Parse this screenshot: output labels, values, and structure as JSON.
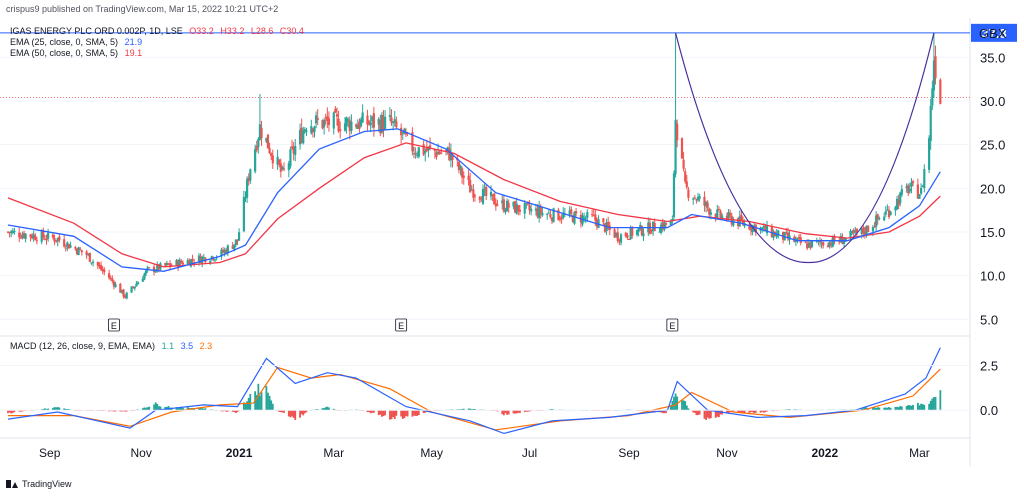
{
  "header": {
    "caption": "crispus9 published on TradingView.com, Mar 15, 2022 10:21 UTC+2"
  },
  "footer": {
    "brand": "TradingView"
  },
  "chart_data": {
    "type": "candlestick",
    "currency": "GBX",
    "legend": {
      "symbol_line": {
        "name": "IGAS ENERGY PLC ORD 0.002P, 1D, LSE",
        "O": "O33.2",
        "H": "H33.2",
        "L": "L28.6",
        "C": "C30.4"
      },
      "ema25": {
        "label": "EMA (25, close, 0, SMA, 5)",
        "value": "21.9",
        "color": "#2962ff"
      },
      "ema50": {
        "label": "EMA (50, close, 0, SMA, 5)",
        "value": "19.1",
        "color": "#f23645"
      },
      "macd": {
        "label": "MACD (12, 26, close, 9, EMA, EMA)",
        "hist": "1.1",
        "macd": "3.5",
        "signal": "2.3"
      }
    },
    "price_axis": {
      "ticks": [
        "35.0",
        "30.0",
        "25.0",
        "20.0",
        "15.0",
        "10.0",
        "5.0"
      ],
      "values": [
        35,
        30,
        25,
        20,
        15,
        10,
        5
      ],
      "range": [
        3.2,
        39.5
      ]
    },
    "macd_axis": {
      "ticks": [
        "2.5",
        "0.0"
      ],
      "values": [
        2.5,
        0
      ],
      "range": [
        -1.5,
        4.1
      ]
    },
    "last_price_marker": {
      "text": "37.8",
      "value": 37.8,
      "color": "#2962ff"
    },
    "reference_line": {
      "value": 30.4,
      "color": "#f23645"
    },
    "time_axis": {
      "labels": [
        {
          "text": "Sep",
          "bold": false
        },
        {
          "text": "Nov",
          "bold": false
        },
        {
          "text": "2021",
          "bold": true
        },
        {
          "text": "Mar",
          "bold": false
        },
        {
          "text": "May",
          "bold": false
        },
        {
          "text": "Jul",
          "bold": false
        },
        {
          "text": "Sep",
          "bold": false
        },
        {
          "text": "Nov",
          "bold": false
        },
        {
          "text": "2022",
          "bold": true
        },
        {
          "text": "Mar",
          "bold": false
        }
      ],
      "range": [
        "2020-08-10",
        "2022-03-25"
      ]
    },
    "earnings_markers": [
      {
        "text": "E",
        "date": "2020-10-15"
      },
      {
        "text": "E",
        "date": "2021-04-12"
      },
      {
        "text": "E",
        "date": "2021-09-28"
      }
    ],
    "ohlc_keypoints": [
      {
        "date": "2020-08-10",
        "close": 15.0
      },
      {
        "date": "2020-09-10",
        "close": 14.2
      },
      {
        "date": "2020-09-28",
        "close": 12.4
      },
      {
        "date": "2020-10-12",
        "close": 9.8
      },
      {
        "date": "2020-10-22",
        "close": 7.6
      },
      {
        "date": "2020-11-05",
        "close": 10.6
      },
      {
        "date": "2020-11-28",
        "close": 11.6
      },
      {
        "date": "2020-12-20",
        "close": 12.4
      },
      {
        "date": "2020-12-31",
        "close": 14.0
      },
      {
        "date": "2021-01-08",
        "close": 22.5
      },
      {
        "date": "2021-01-14",
        "close": 27.0
      },
      {
        "date": "2021-01-28",
        "close": 21.5
      },
      {
        "date": "2021-02-12",
        "close": 27.5
      },
      {
        "date": "2021-03-15",
        "close": 27.5
      },
      {
        "date": "2021-04-05",
        "close": 27.5
      },
      {
        "date": "2021-04-20",
        "close": 24.5
      },
      {
        "date": "2021-05-12",
        "close": 24.0
      },
      {
        "date": "2021-05-25",
        "close": 20.0
      },
      {
        "date": "2021-06-15",
        "close": 18.0
      },
      {
        "date": "2021-07-15",
        "close": 17.0
      },
      {
        "date": "2021-08-10",
        "close": 16.5
      },
      {
        "date": "2021-08-25",
        "close": 14.5
      },
      {
        "date": "2021-09-15",
        "close": 15.5
      },
      {
        "date": "2021-09-28",
        "close": 16.0
      },
      {
        "date": "2021-09-30",
        "close": 28.0
      },
      {
        "date": "2021-10-06",
        "close": 20.0
      },
      {
        "date": "2021-10-25",
        "close": 17.0
      },
      {
        "date": "2021-11-20",
        "close": 15.5
      },
      {
        "date": "2021-12-20",
        "close": 13.5
      },
      {
        "date": "2022-01-10",
        "close": 14.0
      },
      {
        "date": "2022-01-25",
        "close": 15.0
      },
      {
        "date": "2022-02-10",
        "close": 17.5
      },
      {
        "date": "2022-02-22",
        "close": 20.0
      },
      {
        "date": "2022-03-02",
        "close": 19.5
      },
      {
        "date": "2022-03-07",
        "close": 26.0
      },
      {
        "date": "2022-03-10",
        "close": 35.0
      },
      {
        "date": "2022-03-14",
        "close": 30.4
      }
    ],
    "spikes": [
      {
        "date": "2021-01-14",
        "high": 30.8
      },
      {
        "date": "2021-09-30",
        "high": 37.8
      },
      {
        "date": "2022-03-10",
        "high": 37.8
      }
    ],
    "ema25_points": [
      {
        "date": "2020-08-10",
        "value": 15.8
      },
      {
        "date": "2020-09-20",
        "value": 14.5
      },
      {
        "date": "2020-10-20",
        "value": 11.0
      },
      {
        "date": "2020-11-15",
        "value": 10.5
      },
      {
        "date": "2020-12-20",
        "value": 12.2
      },
      {
        "date": "2021-01-05",
        "value": 13.5
      },
      {
        "date": "2021-01-25",
        "value": 19.5
      },
      {
        "date": "2021-02-20",
        "value": 24.5
      },
      {
        "date": "2021-03-20",
        "value": 26.5
      },
      {
        "date": "2021-04-10",
        "value": 26.8
      },
      {
        "date": "2021-05-10",
        "value": 24.5
      },
      {
        "date": "2021-06-10",
        "value": 19.5
      },
      {
        "date": "2021-07-15",
        "value": 17.5
      },
      {
        "date": "2021-08-20",
        "value": 15.5
      },
      {
        "date": "2021-09-25",
        "value": 15.5
      },
      {
        "date": "2021-10-10",
        "value": 17.0
      },
      {
        "date": "2021-11-10",
        "value": 16.0
      },
      {
        "date": "2021-12-15",
        "value": 14.0
      },
      {
        "date": "2022-01-15",
        "value": 14.0
      },
      {
        "date": "2022-02-10",
        "value": 15.5
      },
      {
        "date": "2022-03-01",
        "value": 18.0
      },
      {
        "date": "2022-03-14",
        "value": 21.9
      }
    ],
    "ema50_points": [
      {
        "date": "2020-08-10",
        "value": 18.9
      },
      {
        "date": "2020-09-20",
        "value": 16.0
      },
      {
        "date": "2020-10-20",
        "value": 12.5
      },
      {
        "date": "2020-11-15",
        "value": 11.0
      },
      {
        "date": "2020-12-20",
        "value": 11.5
      },
      {
        "date": "2021-01-05",
        "value": 12.5
      },
      {
        "date": "2021-01-25",
        "value": 16.5
      },
      {
        "date": "2021-02-20",
        "value": 20.0
      },
      {
        "date": "2021-03-20",
        "value": 23.5
      },
      {
        "date": "2021-04-15",
        "value": 25.2
      },
      {
        "date": "2021-05-15",
        "value": 24.0
      },
      {
        "date": "2021-06-15",
        "value": 21.0
      },
      {
        "date": "2021-07-20",
        "value": 18.5
      },
      {
        "date": "2021-08-25",
        "value": 17.0
      },
      {
        "date": "2021-09-25",
        "value": 16.2
      },
      {
        "date": "2021-10-15",
        "value": 16.8
      },
      {
        "date": "2021-11-15",
        "value": 16.2
      },
      {
        "date": "2021-12-20",
        "value": 14.8
      },
      {
        "date": "2022-01-15",
        "value": 14.3
      },
      {
        "date": "2022-02-10",
        "value": 15.0
      },
      {
        "date": "2022-03-01",
        "value": 16.8
      },
      {
        "date": "2022-03-14",
        "value": 19.1
      }
    ],
    "cup_curve": {
      "start": {
        "date": "2021-09-30",
        "value": 37.8
      },
      "bottom": {
        "date": "2021-12-22",
        "value": 11.5
      },
      "end": {
        "date": "2022-03-10",
        "value": 37.8
      },
      "color": "#4a2f9e"
    },
    "macd_series": {
      "macd": [
        {
          "date": "2020-08-10",
          "value": -0.5
        },
        {
          "date": "2020-09-10",
          "value": -0.1
        },
        {
          "date": "2020-10-05",
          "value": -0.6
        },
        {
          "date": "2020-10-25",
          "value": -1.0
        },
        {
          "date": "2020-11-10",
          "value": 0.0
        },
        {
          "date": "2020-12-10",
          "value": 0.3
        },
        {
          "date": "2020-12-31",
          "value": 0.2
        },
        {
          "date": "2021-01-18",
          "value": 2.9
        },
        {
          "date": "2021-02-05",
          "value": 1.5
        },
        {
          "date": "2021-02-25",
          "value": 2.1
        },
        {
          "date": "2021-03-15",
          "value": 1.8
        },
        {
          "date": "2021-04-15",
          "value": 0.2
        },
        {
          "date": "2021-05-25",
          "value": -0.6
        },
        {
          "date": "2021-06-15",
          "value": -1.3
        },
        {
          "date": "2021-07-15",
          "value": -0.6
        },
        {
          "date": "2021-08-20",
          "value": -0.4
        },
        {
          "date": "2021-09-25",
          "value": 0.0
        },
        {
          "date": "2021-10-01",
          "value": 1.6
        },
        {
          "date": "2021-10-20",
          "value": 0.0
        },
        {
          "date": "2021-11-20",
          "value": -0.4
        },
        {
          "date": "2021-12-20",
          "value": -0.3
        },
        {
          "date": "2022-01-20",
          "value": 0.0
        },
        {
          "date": "2022-02-20",
          "value": 0.9
        },
        {
          "date": "2022-03-05",
          "value": 1.8
        },
        {
          "date": "2022-03-14",
          "value": 3.5
        }
      ],
      "signal": [
        {
          "date": "2020-08-10",
          "value": -0.3
        },
        {
          "date": "2020-09-20",
          "value": -0.3
        },
        {
          "date": "2020-10-25",
          "value": -0.9
        },
        {
          "date": "2020-11-20",
          "value": -0.1
        },
        {
          "date": "2020-12-20",
          "value": 0.3
        },
        {
          "date": "2021-01-10",
          "value": 0.4
        },
        {
          "date": "2021-01-25",
          "value": 2.4
        },
        {
          "date": "2021-02-15",
          "value": 1.8
        },
        {
          "date": "2021-03-05",
          "value": 2.0
        },
        {
          "date": "2021-04-05",
          "value": 1.2
        },
        {
          "date": "2021-05-01",
          "value": -0.1
        },
        {
          "date": "2021-06-10",
          "value": -1.1
        },
        {
          "date": "2021-07-20",
          "value": -0.6
        },
        {
          "date": "2021-09-01",
          "value": -0.3
        },
        {
          "date": "2021-09-30",
          "value": 0.3
        },
        {
          "date": "2021-10-10",
          "value": 1.0
        },
        {
          "date": "2021-11-05",
          "value": -0.1
        },
        {
          "date": "2021-12-10",
          "value": -0.4
        },
        {
          "date": "2022-01-25",
          "value": 0.0
        },
        {
          "date": "2022-02-25",
          "value": 0.8
        },
        {
          "date": "2022-03-14",
          "value": 2.3
        }
      ]
    }
  }
}
